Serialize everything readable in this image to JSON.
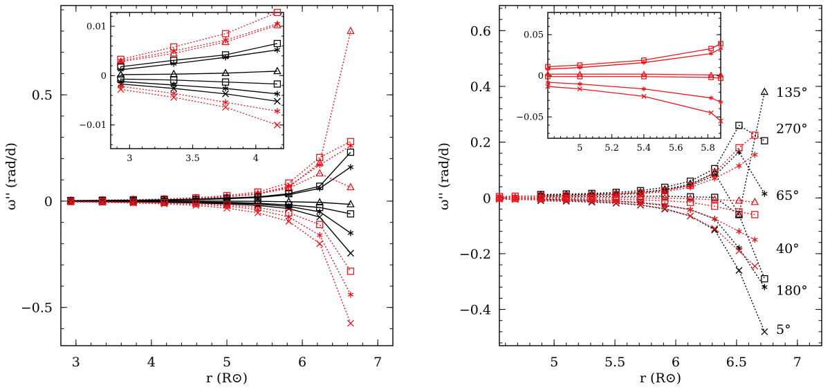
{
  "chart_data": [
    {
      "type": "line",
      "xlabel": "r (R⊙)",
      "ylabel": "ω'' (rad/d)",
      "xlim": [
        2.8,
        7.2
      ],
      "ylim": [
        -0.68,
        0.92
      ],
      "xticks": [
        "3",
        "4",
        "5",
        "6",
        "7"
      ],
      "yticks": [
        "−0.5",
        "0",
        "0.5"
      ],
      "xtick_values": [
        3,
        4,
        5,
        6,
        7
      ],
      "ytick_values": [
        -0.5,
        0,
        0.5
      ],
      "x": [
        2.93,
        3.35,
        3.76,
        4.17,
        4.59,
        5.0,
        5.41,
        5.82,
        6.23,
        6.64
      ],
      "series": [
        {
          "color": "#e8141c",
          "marker": "triangle",
          "style": "dotted",
          "values": [
            0.003,
            0.004,
            0.006,
            0.008,
            0.012,
            0.02,
            0.032,
            0.065,
            0.18,
            0.8
          ]
        },
        {
          "color": "#e8141c",
          "marker": "square",
          "style": "dotted",
          "values": [
            0.003,
            0.005,
            0.007,
            0.01,
            0.016,
            0.026,
            0.043,
            0.085,
            0.205,
            0.28
          ]
        },
        {
          "color": "#e8141c",
          "marker": "star",
          "style": "dotted",
          "values": [
            0.002,
            0.004,
            0.006,
            0.009,
            0.013,
            0.021,
            0.036,
            0.07,
            0.17,
            0.26
          ]
        },
        {
          "color": "#e8141c",
          "marker": "triangle",
          "style": "dotted",
          "values": [
            0.002,
            0.003,
            0.005,
            0.008,
            0.012,
            0.02,
            0.034,
            0.06,
            0.13,
            0.065
          ]
        },
        {
          "color": "#000000",
          "marker": "square",
          "style": "solid",
          "values": [
            0.002,
            0.003,
            0.004,
            0.006,
            0.009,
            0.014,
            0.02,
            0.035,
            0.07,
            0.23
          ]
        },
        {
          "color": "#000000",
          "marker": "star",
          "style": "solid",
          "values": [
            0.001,
            0.002,
            0.003,
            0.005,
            0.007,
            0.011,
            0.017,
            0.03,
            0.06,
            0.16
          ]
        },
        {
          "color": "#000000",
          "marker": "triangle",
          "style": "solid",
          "values": [
            0.0,
            0.0,
            0.001,
            0.001,
            0.001,
            0.0,
            -0.001,
            -0.003,
            -0.006,
            -0.015
          ]
        },
        {
          "color": "#000000",
          "marker": "square",
          "style": "solid",
          "values": [
            -0.001,
            -0.002,
            -0.002,
            -0.003,
            -0.004,
            -0.006,
            -0.01,
            -0.018,
            -0.03,
            -0.06
          ]
        },
        {
          "color": "#000000",
          "marker": "star",
          "style": "solid",
          "values": [
            -0.001,
            -0.002,
            -0.003,
            -0.004,
            -0.006,
            -0.009,
            -0.014,
            -0.025,
            -0.05,
            -0.15
          ]
        },
        {
          "color": "#000000",
          "marker": "cross",
          "style": "solid",
          "values": [
            -0.002,
            -0.003,
            -0.004,
            -0.006,
            -0.009,
            -0.013,
            -0.02,
            -0.035,
            -0.075,
            -0.245
          ]
        },
        {
          "color": "#e8141c",
          "marker": "square",
          "style": "dotted",
          "values": [
            -0.002,
            -0.003,
            -0.005,
            -0.007,
            -0.011,
            -0.018,
            -0.03,
            -0.055,
            -0.11,
            -0.33
          ]
        },
        {
          "color": "#e8141c",
          "marker": "star",
          "style": "dotted",
          "values": [
            -0.003,
            -0.004,
            -0.006,
            -0.009,
            -0.014,
            -0.023,
            -0.04,
            -0.075,
            -0.16,
            -0.44
          ]
        },
        {
          "color": "#e8141c",
          "marker": "cross",
          "style": "dotted",
          "values": [
            -0.004,
            -0.006,
            -0.009,
            -0.013,
            -0.02,
            -0.033,
            -0.055,
            -0.095,
            -0.2,
            -0.575
          ]
        }
      ],
      "inset": {
        "xlim": [
          2.85,
          4.22
        ],
        "ylim": [
          -0.0148,
          0.0128
        ],
        "xticks": [
          "3",
          "3.5",
          "4"
        ],
        "yticks": [
          "−0.01",
          "0",
          "0.01"
        ],
        "xtick_values": [
          3,
          3.5,
          4
        ],
        "ytick_values": [
          -0.01,
          0,
          0.01
        ],
        "x": [
          2.93,
          3.35,
          3.76,
          4.17
        ],
        "series": [
          {
            "color": "#e8141c",
            "marker": "square",
            "style": "dotted",
            "values": [
              0.0033,
              0.0058,
              0.0085,
              0.0128
            ]
          },
          {
            "color": "#e8141c",
            "marker": "star",
            "style": "dotted",
            "values": [
              0.003,
              0.005,
              0.0072,
              0.0105
            ]
          },
          {
            "color": "#e8141c",
            "marker": "triangle",
            "style": "dotted",
            "values": [
              0.0028,
              0.0045,
              0.0068,
              0.0102
            ]
          },
          {
            "color": "#000000",
            "marker": "square",
            "style": "solid",
            "values": [
              0.0018,
              0.0031,
              0.0042,
              0.0065
            ]
          },
          {
            "color": "#000000",
            "marker": "star",
            "style": "solid",
            "values": [
              0.0012,
              0.0024,
              0.0037,
              0.0052
            ]
          },
          {
            "color": "#000000",
            "marker": "triangle",
            "style": "solid",
            "values": [
              0.0002,
              0.0003,
              0.0005,
              0.0009
            ]
          },
          {
            "color": "#000000",
            "marker": "square",
            "style": "solid",
            "values": [
              -0.0007,
              -0.0009,
              -0.0013,
              -0.0017
            ]
          },
          {
            "color": "#000000",
            "marker": "star",
            "style": "solid",
            "values": [
              -0.0012,
              -0.0019,
              -0.0026,
              -0.0037
            ]
          },
          {
            "color": "#000000",
            "marker": "cross",
            "style": "solid",
            "values": [
              -0.0017,
              -0.0026,
              -0.0037,
              -0.0052
            ]
          },
          {
            "color": "#e8141c",
            "marker": "star",
            "style": "dotted",
            "values": [
              -0.0022,
              -0.0036,
              -0.0054,
              -0.0072
            ]
          },
          {
            "color": "#e8141c",
            "marker": "cross",
            "style": "dotted",
            "values": [
              -0.0028,
              -0.0044,
              -0.0064,
              -0.01
            ]
          }
        ]
      }
    },
    {
      "type": "line",
      "xlabel": "r (R⊙)",
      "ylabel": "ω'' (rad/d)",
      "xlim": [
        4.55,
        7.2
      ],
      "ylim": [
        -0.53,
        0.69
      ],
      "xticks": [
        "5",
        "5.5",
        "6",
        "6.5",
        "7"
      ],
      "yticks": [
        "−0.4",
        "−0.2",
        "0",
        "0.2",
        "0.4",
        "0.6"
      ],
      "xtick_values": [
        5,
        5.5,
        6,
        6.5,
        7
      ],
      "ytick_values": [
        -0.4,
        -0.2,
        0,
        0.2,
        0.4,
        0.6
      ],
      "annotations": [
        "135°",
        "270°",
        "65°",
        "40°",
        "180°",
        "5°"
      ],
      "annotation_values": [
        0.38,
        0.25,
        0.01,
        -0.18,
        -0.33,
        -0.47
      ],
      "series": [
        {
          "color": "#000000",
          "marker": "triangle",
          "style": "dotted",
          "x": [
            4.89,
            5.1,
            5.31,
            5.51,
            5.71,
            5.91,
            6.12,
            6.32,
            6.52,
            6.73
          ],
          "values": [
            0.01,
            0.011,
            0.013,
            0.015,
            0.02,
            0.03,
            0.05,
            0.09,
            -0.06,
            0.38
          ]
        },
        {
          "color": "#000000",
          "marker": "square",
          "style": "dotted",
          "x": [
            4.89,
            5.1,
            5.31,
            5.51,
            5.71,
            5.91,
            6.12,
            6.32,
            6.52,
            6.73
          ],
          "values": [
            0.012,
            0.014,
            0.016,
            0.02,
            0.026,
            0.038,
            0.06,
            0.105,
            0.26,
            0.205
          ]
        },
        {
          "color": "#000000",
          "marker": "star",
          "style": "dotted",
          "x": [
            4.89,
            5.1,
            5.31,
            5.51,
            5.71,
            5.91,
            6.12,
            6.32,
            6.52,
            6.73
          ],
          "values": [
            0.008,
            0.01,
            0.012,
            0.015,
            0.02,
            0.028,
            0.045,
            0.08,
            0.165,
            0.015
          ]
        },
        {
          "color": "#000000",
          "marker": "square",
          "style": "dotted",
          "x": [
            4.89,
            5.1,
            5.31,
            5.51,
            5.71,
            5.91,
            6.12,
            6.32,
            6.52,
            6.73
          ],
          "values": [
            0.004,
            0.004,
            0.005,
            0.005,
            0.006,
            0.006,
            0.004,
            0.002,
            -0.06,
            -0.29
          ]
        },
        {
          "color": "#000000",
          "marker": "star",
          "style": "dotted",
          "x": [
            4.89,
            5.1,
            5.31,
            5.51,
            5.71,
            5.91,
            6.12,
            6.32,
            6.52,
            6.73
          ],
          "values": [
            -0.005,
            -0.007,
            -0.009,
            -0.012,
            -0.018,
            -0.027,
            -0.042,
            -0.075,
            -0.18,
            -0.32
          ]
        },
        {
          "color": "#000000",
          "marker": "cross",
          "style": "dotted",
          "x": [
            4.89,
            5.1,
            5.31,
            5.51,
            5.71,
            5.91,
            6.12,
            6.32,
            6.52,
            6.73
          ],
          "values": [
            -0.01,
            -0.012,
            -0.015,
            -0.019,
            -0.026,
            -0.04,
            -0.065,
            -0.115,
            -0.26,
            -0.48
          ]
        },
        {
          "color": "#e8141c",
          "marker": "square",
          "style": "dotted",
          "x": [
            4.55,
            4.68,
            4.89,
            5.1,
            5.31,
            5.51,
            5.71,
            5.91,
            6.12,
            6.32,
            6.52,
            6.65
          ],
          "values": [
            0.005,
            0.006,
            0.007,
            0.008,
            0.01,
            0.013,
            0.018,
            0.026,
            0.045,
            0.09,
            0.18,
            0.225
          ]
        },
        {
          "color": "#e8141c",
          "marker": "star",
          "style": "dotted",
          "x": [
            4.55,
            4.68,
            4.89,
            5.1,
            5.31,
            5.51,
            5.71,
            5.91,
            6.12,
            6.32,
            6.52,
            6.65
          ],
          "values": [
            0.004,
            0.005,
            0.006,
            0.007,
            0.009,
            0.011,
            0.015,
            0.022,
            0.038,
            0.07,
            0.115,
            0.155
          ]
        },
        {
          "color": "#e8141c",
          "marker": "triangle",
          "style": "dotted",
          "x": [
            4.55,
            4.68,
            4.89,
            5.1,
            5.31,
            5.51,
            5.71,
            5.91,
            6.12,
            6.32,
            6.52,
            6.65
          ],
          "values": [
            0.001,
            0.001,
            0.001,
            0.001,
            0.001,
            0.001,
            0.0,
            -0.001,
            -0.003,
            -0.006,
            -0.01,
            -0.015
          ]
        },
        {
          "color": "#e8141c",
          "marker": "square",
          "style": "dotted",
          "x": [
            4.55,
            4.68,
            4.89,
            5.1,
            5.31,
            5.51,
            5.71,
            5.91,
            6.12,
            6.32,
            6.52,
            6.65
          ],
          "values": [
            -0.001,
            -0.002,
            -0.002,
            -0.003,
            -0.004,
            -0.005,
            -0.007,
            -0.01,
            -0.016,
            -0.03,
            -0.05,
            -0.06
          ]
        },
        {
          "color": "#e8141c",
          "marker": "star",
          "style": "dotted",
          "x": [
            4.55,
            4.68,
            4.89,
            5.1,
            5.31,
            5.51,
            5.71,
            5.91,
            6.12,
            6.32,
            6.52,
            6.65
          ],
          "values": [
            -0.003,
            -0.004,
            -0.005,
            -0.006,
            -0.008,
            -0.011,
            -0.016,
            -0.025,
            -0.042,
            -0.075,
            -0.12,
            -0.15
          ]
        },
        {
          "color": "#e8141c",
          "marker": "cross",
          "style": "dotted",
          "x": [
            4.55,
            4.68,
            4.89,
            5.1,
            5.31,
            5.51,
            5.71,
            5.91,
            6.12,
            6.32,
            6.52,
            6.65
          ],
          "values": [
            -0.005,
            -0.006,
            -0.007,
            -0.009,
            -0.012,
            -0.017,
            -0.025,
            -0.038,
            -0.065,
            -0.11,
            -0.19,
            -0.245
          ]
        }
      ],
      "inset": {
        "xlim": [
          4.8,
          5.88
        ],
        "ylim": [
          -0.076,
          0.077
        ],
        "xticks": [
          "5",
          "5.2",
          "5.4",
          "5.6",
          "5.8"
        ],
        "yticks": [
          "−0.05",
          "0",
          "0.05"
        ],
        "xtick_values": [
          5,
          5.2,
          5.4,
          5.6,
          5.8
        ],
        "ytick_values": [
          -0.05,
          0,
          0.05
        ],
        "x": [
          4.8,
          5.0,
          5.4,
          5.82,
          5.88
        ],
        "series": [
          {
            "color": "#e8141c",
            "marker": "square",
            "style": "solid",
            "values": [
              0.011,
              0.013,
              0.019,
              0.033,
              0.039
            ]
          },
          {
            "color": "#e8141c",
            "marker": "star",
            "style": "solid",
            "values": [
              0.008,
              0.01,
              0.016,
              0.027,
              0.033
            ]
          },
          {
            "color": "#e8141c",
            "marker": "triangle",
            "style": "solid",
            "values": [
              0.002,
              0.002,
              0.002,
              0.001,
              0.001
            ]
          },
          {
            "color": "#e8141c",
            "marker": "square",
            "style": "solid",
            "values": [
              -0.001,
              -0.001,
              -0.001,
              -0.002,
              -0.003
            ]
          },
          {
            "color": "#e8141c",
            "marker": "star",
            "style": "solid",
            "values": [
              -0.008,
              -0.01,
              -0.016,
              -0.027,
              -0.032
            ]
          },
          {
            "color": "#e8141c",
            "marker": "cross",
            "style": "solid",
            "values": [
              -0.013,
              -0.016,
              -0.025,
              -0.045,
              -0.055
            ]
          }
        ]
      }
    }
  ]
}
